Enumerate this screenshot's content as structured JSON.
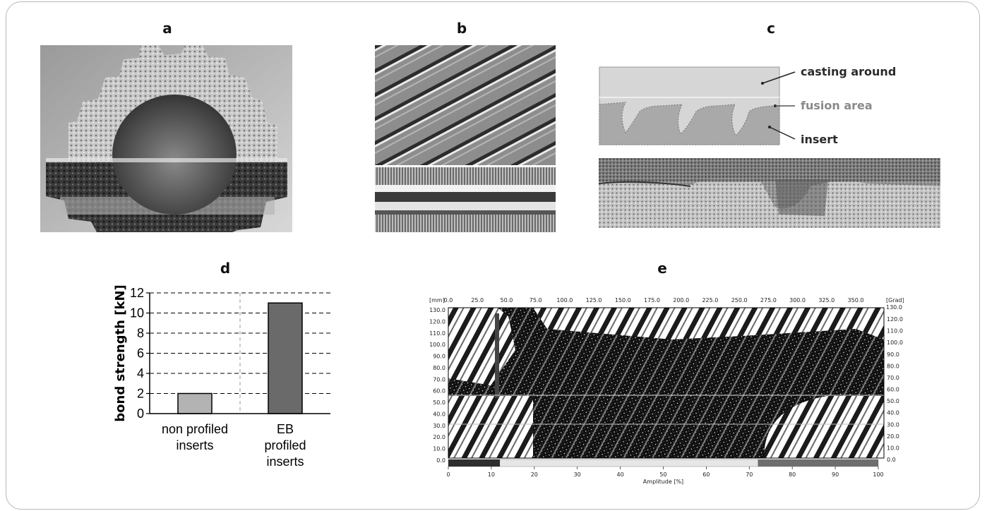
{
  "panels": {
    "a": {
      "letter": "a"
    },
    "b": {
      "letter": "b"
    },
    "c": {
      "letter": "c",
      "labels": {
        "casting_around": "casting around",
        "fusion_area": "fusion area",
        "insert": "insert"
      }
    },
    "d": {
      "letter": "d"
    },
    "e": {
      "letter": "e"
    }
  },
  "chart_data": [
    {
      "panel": "d",
      "type": "bar",
      "categories": [
        "non profiled inserts",
        "EB profiled inserts"
      ],
      "category_lines": [
        [
          "non profiled",
          "inserts"
        ],
        [
          "EB",
          "profiled",
          "inserts"
        ]
      ],
      "values": [
        2,
        11
      ],
      "bar_colors": [
        "#b3b3b3",
        "#6a6a6a"
      ],
      "ylabel": "bond strength [kN]",
      "ylim": [
        0,
        12
      ],
      "yticks": [
        "0",
        "2",
        "4",
        "6",
        "8",
        "10",
        "12"
      ],
      "grid": "dashed horizontal"
    },
    {
      "panel": "e",
      "type": "heatmap",
      "xlabel": "Amplitude [%]",
      "top_left_unit": "[mm]",
      "top_right_unit": "[Grad]",
      "top_axis_ticks": [
        "0.0",
        "25.0",
        "50.0",
        "75.0",
        "100.0",
        "125.0",
        "150.0",
        "175.0",
        "200.0",
        "225.0",
        "250.0",
        "275.0",
        "300.0",
        "325.0",
        "350.0"
      ],
      "top_right_value": "130.0",
      "left_axis_ticks": [
        "130.0",
        "120.0",
        "110.0",
        "100.0",
        "90.0",
        "80.0",
        "70.0",
        "60.0",
        "50.0",
        "40.0",
        "30.0",
        "20.0",
        "10.0",
        "0.0"
      ],
      "right_axis_ticks": [
        "120.0",
        "110.0",
        "100.0",
        "90.0",
        "80.0",
        "70.0",
        "60.0",
        "50.0",
        "40.0",
        "30.0",
        "20.0",
        "10.0",
        "0.0"
      ],
      "bottom_axis_ticks": [
        "0",
        "10",
        "20",
        "30",
        "40",
        "50",
        "60",
        "70",
        "80",
        "90",
        "100"
      ],
      "amplitude_bar": {
        "dark_range": [
          0,
          12
        ],
        "grey_range": [
          72,
          100
        ]
      }
    }
  ]
}
